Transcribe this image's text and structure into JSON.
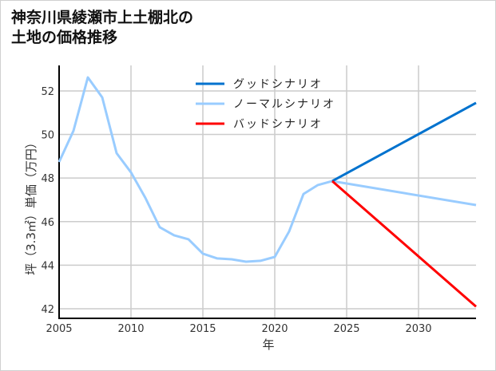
{
  "chart_data": {
    "type": "line",
    "title": [
      "神奈川県綾瀬市上土棚北の",
      "土地の価格推移"
    ],
    "xlabel": "年",
    "ylabel": "坪（3.3㎡）単価（万円）",
    "xlim": [
      2005,
      2034
    ],
    "ylim": [
      41.56,
      53.17
    ],
    "xticks": [
      2005,
      2010,
      2015,
      2020,
      2025,
      2030
    ],
    "yticks": [
      42,
      44,
      46,
      48,
      50,
      52
    ],
    "grid": true,
    "legend_position": "top-center",
    "series": [
      {
        "name": "グッドシナリオ",
        "color": "#0072CE",
        "x": [
          2024,
          2034
        ],
        "y": [
          47.86,
          51.45
        ]
      },
      {
        "name": "ノーマルシナリオ",
        "color": "#99CCFF",
        "x": [
          2005,
          2006,
          2007,
          2008,
          2009,
          2010,
          2011,
          2012,
          2013,
          2014,
          2015,
          2016,
          2017,
          2018,
          2019,
          2020,
          2021,
          2022,
          2023,
          2024,
          2034
        ],
        "y": [
          48.74,
          50.17,
          52.62,
          51.7,
          49.14,
          48.26,
          47.09,
          45.74,
          45.37,
          45.19,
          44.53,
          44.31,
          44.27,
          44.16,
          44.2,
          44.38,
          45.55,
          47.27,
          47.68,
          47.86,
          46.76
        ]
      },
      {
        "name": "バッドシナリオ",
        "color": "#FF0000",
        "x": [
          2024,
          2034
        ],
        "y": [
          47.86,
          42.1
        ]
      }
    ]
  }
}
